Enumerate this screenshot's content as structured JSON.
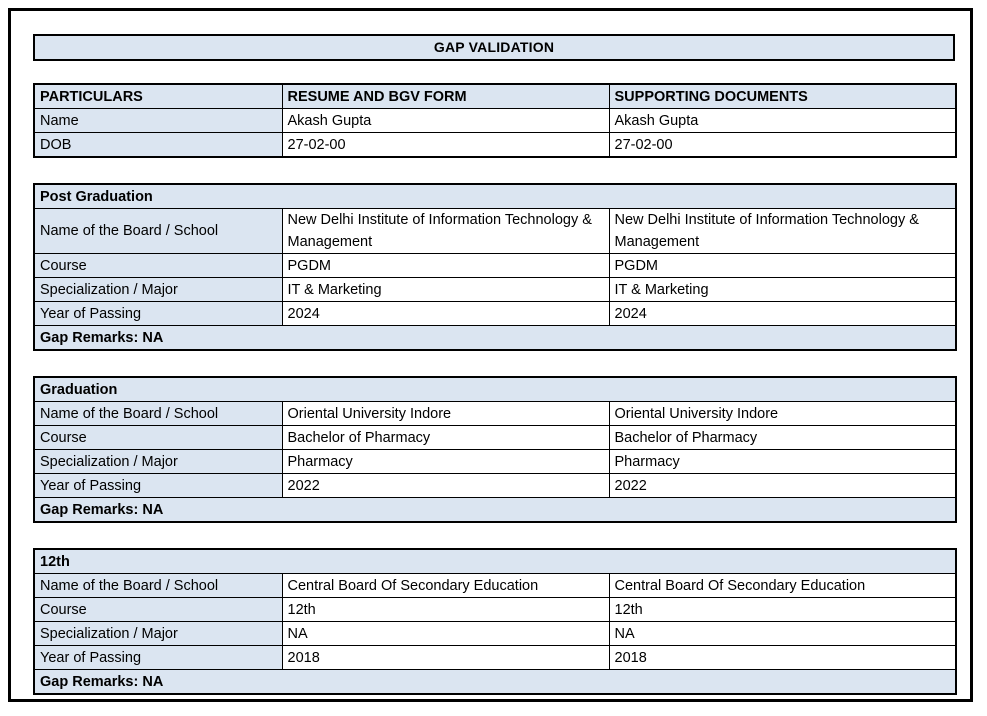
{
  "title": "GAP VALIDATION",
  "colors": {
    "header_fill": "#dbe5f1",
    "border": "#000000",
    "text": "#000000"
  },
  "particulars": {
    "headers": [
      "PARTICULARS",
      "RESUME AND BGV FORM",
      "SUPPORTING DOCUMENTS"
    ],
    "rows": [
      {
        "label": "Name",
        "resume": "Akash Gupta",
        "supporting": "Akash Gupta"
      },
      {
        "label": "DOB",
        "resume": "27-02-00",
        "supporting": "27-02-00"
      }
    ]
  },
  "sections": [
    {
      "title": "Post Graduation",
      "rows": [
        {
          "label": "Name of the Board / School",
          "resume": "New Delhi Institute of Information Technology & Management",
          "supporting": "New Delhi Institute of Information Technology & Management"
        },
        {
          "label": "Course",
          "resume": "PGDM",
          "supporting": "PGDM"
        },
        {
          "label": "Specialization / Major",
          "resume": "IT & Marketing",
          "supporting": "IT & Marketing"
        },
        {
          "label": "Year of Passing",
          "resume": "2024",
          "supporting": "2024"
        }
      ],
      "gap_remarks": "Gap Remarks: NA"
    },
    {
      "title": "Graduation",
      "rows": [
        {
          "label": "Name of the Board / School",
          "resume": "Oriental University Indore",
          "supporting": "Oriental University Indore"
        },
        {
          "label": "Course",
          "resume": "Bachelor of Pharmacy",
          "supporting": "Bachelor of Pharmacy"
        },
        {
          "label": "Specialization / Major",
          "resume": "Pharmacy",
          "supporting": "Pharmacy"
        },
        {
          "label": "Year of Passing",
          "resume": "2022",
          "supporting": "2022"
        }
      ],
      "gap_remarks": "Gap Remarks: NA"
    },
    {
      "title": "12th",
      "rows": [
        {
          "label": "Name of the Board / School",
          "resume": "Central Board Of Secondary Education",
          "supporting": "Central Board Of Secondary Education"
        },
        {
          "label": "Course",
          "resume": "12th",
          "supporting": "12th"
        },
        {
          "label": "Specialization / Major",
          "resume": "NA",
          "supporting": "NA"
        },
        {
          "label": "Year of Passing",
          "resume": "2018",
          "supporting": "2018"
        }
      ],
      "gap_remarks": "Gap Remarks: NA"
    }
  ]
}
